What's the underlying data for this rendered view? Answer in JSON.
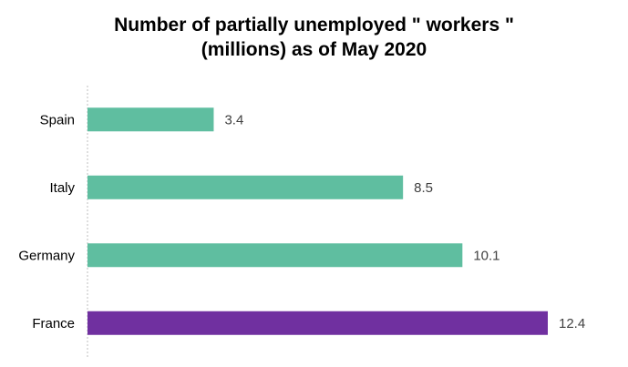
{
  "chart_data": {
    "type": "bar",
    "orientation": "horizontal",
    "title_lines": [
      "Number of partially unemployed \" workers \"",
      "(millions) as of May 2020"
    ],
    "categories": [
      "Spain",
      "Italy",
      "Germany",
      "France"
    ],
    "values": [
      3.4,
      8.5,
      10.1,
      12.4
    ],
    "value_labels": [
      "3.4",
      "8.5",
      "10.1",
      "12.4"
    ],
    "bar_colors": [
      "#5fbea0",
      "#5fbea0",
      "#5fbea0",
      "#7030a0"
    ],
    "xlim": [
      0,
      12.4
    ],
    "grid": false,
    "legend": "none",
    "data_labels": "outside-end"
  }
}
